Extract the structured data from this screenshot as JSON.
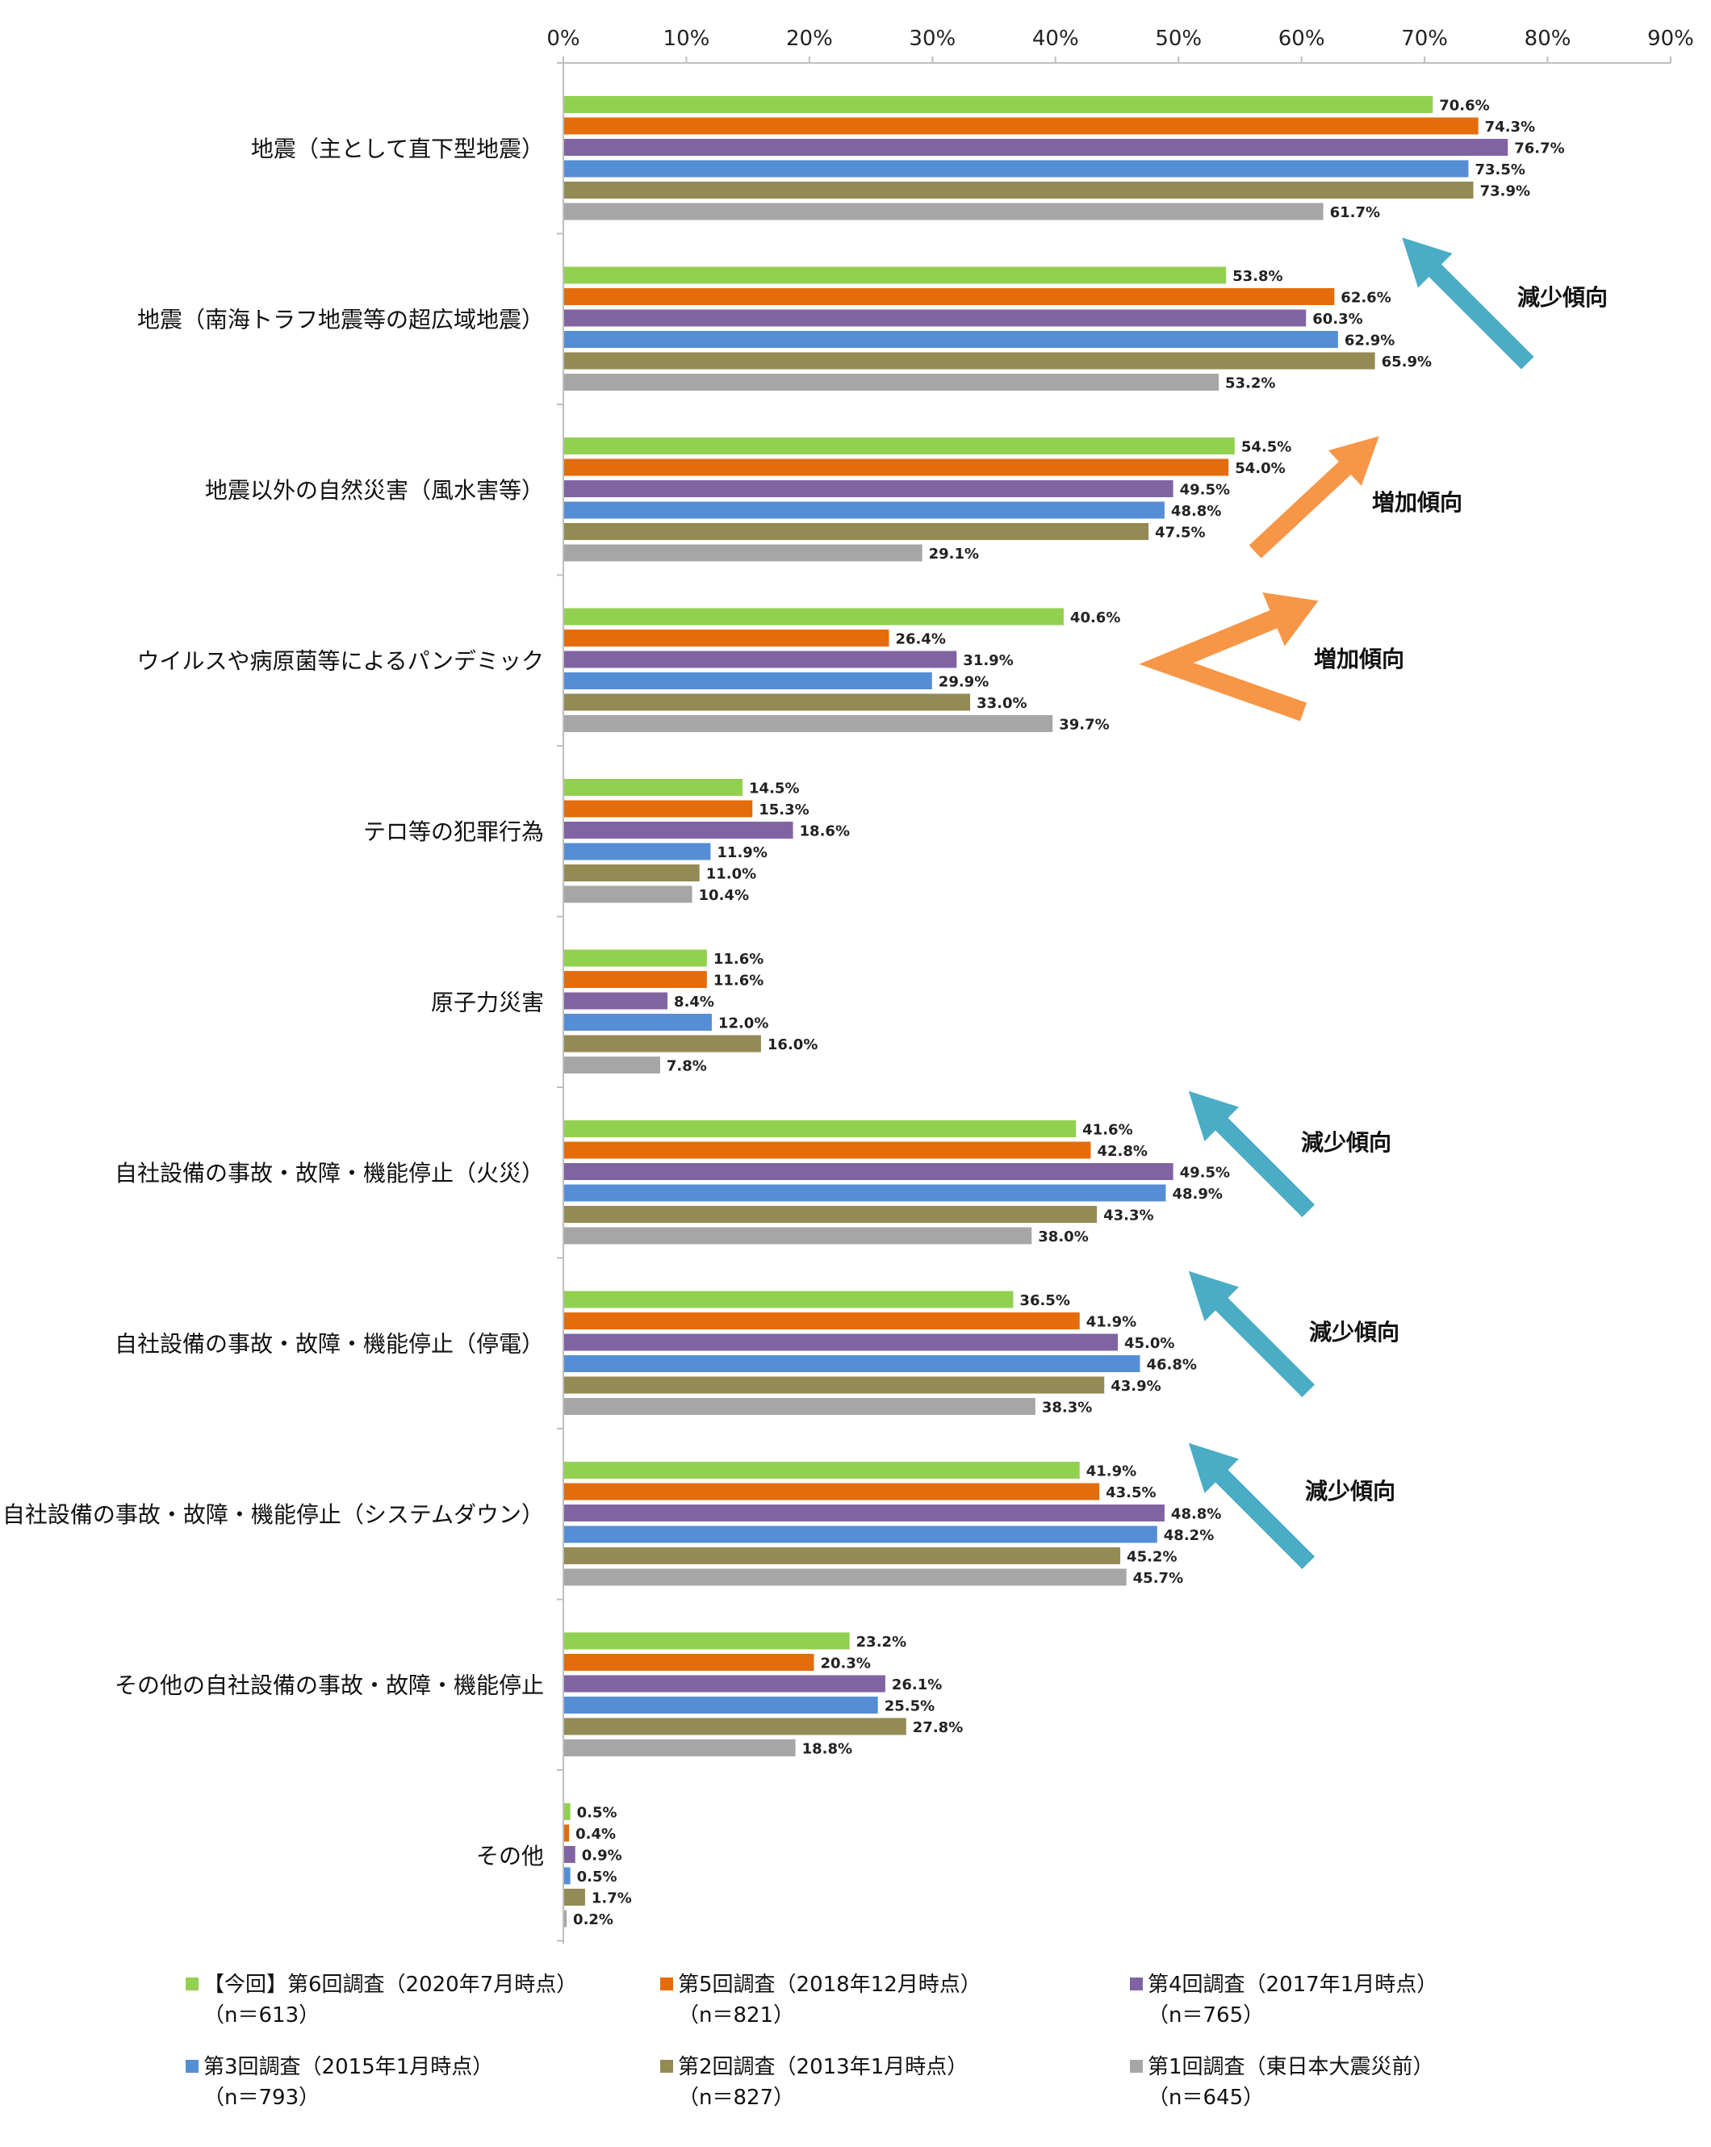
{
  "chart_data": {
    "type": "bar",
    "orientation": "horizontal",
    "xlim": [
      0,
      90
    ],
    "x_ticks": [
      "0%",
      "10%",
      "20%",
      "30%",
      "40%",
      "50%",
      "60%",
      "70%",
      "80%",
      "90%"
    ],
    "grid": false,
    "legend_position": "bottom",
    "value_suffix": "%",
    "categories": [
      "地震（主として直下型地震）",
      "地震（南海トラフ地震等の超広域地震）",
      "地震以外の自然災害（風水害等）",
      "ウイルスや病原菌等によるパンデミック",
      "テロ等の犯罪行為",
      "原子力災害",
      "自社設備の事故・故障・機能停止（火災）",
      "自社設備の事故・故障・機能停止（停電）",
      "自社設備の事故・故障・機能停止（システムダウン）",
      "その他の自社設備の事故・故障・機能停止",
      "その他"
    ],
    "series": [
      {
        "name": "【今回】第6回調査（2020年7月時点）",
        "n": "（n＝613）",
        "color": "#92D050",
        "values": [
          70.6,
          53.8,
          54.5,
          40.6,
          14.5,
          11.6,
          41.6,
          36.5,
          41.9,
          23.2,
          0.5
        ]
      },
      {
        "name": "第5回調査（2018年12月時点）",
        "n": "（n＝821）",
        "color": "#E46C0A",
        "values": [
          74.3,
          62.6,
          54.0,
          26.4,
          15.3,
          11.6,
          42.8,
          41.9,
          43.5,
          20.3,
          0.4
        ]
      },
      {
        "name": "第4回調査（2017年1月時点）",
        "n": "（n＝765）",
        "color": "#8064A2",
        "values": [
          76.7,
          60.3,
          49.5,
          31.9,
          18.6,
          8.4,
          49.5,
          45.0,
          48.8,
          26.1,
          0.9
        ]
      },
      {
        "name": "第3回調査（2015年1月時点）",
        "n": "（n＝793）",
        "color": "#558ED5",
        "values": [
          73.5,
          62.9,
          48.8,
          29.9,
          11.9,
          12.0,
          48.9,
          46.8,
          48.2,
          25.5,
          0.5
        ]
      },
      {
        "name": "第2回調査（2013年1月時点）",
        "n": "（n＝827）",
        "color": "#948A54",
        "values": [
          73.9,
          65.9,
          47.5,
          33.0,
          11.0,
          16.0,
          43.3,
          43.9,
          45.2,
          27.8,
          1.7
        ]
      },
      {
        "name": "第1回調査（東日本大震災前）",
        "n": "（n＝645）",
        "color": "#A6A6A6",
        "values": [
          61.7,
          53.2,
          29.1,
          39.7,
          10.4,
          7.8,
          38.0,
          38.3,
          45.7,
          18.8,
          0.2
        ]
      }
    ],
    "annotations": [
      {
        "text": "減少傾向",
        "category_index": 1,
        "arrow": "up-left",
        "color": "#4BACC6"
      },
      {
        "text": "増加傾向",
        "category_index": 2,
        "arrow": "up-right",
        "color": "#F79646"
      },
      {
        "text": "増加傾向",
        "category_index": 3,
        "arrow": "chevron",
        "color": "#F79646"
      },
      {
        "text": "減少傾向",
        "category_index": 6,
        "arrow": "up-left",
        "color": "#4BACC6"
      },
      {
        "text": "減少傾向",
        "category_index": 7,
        "arrow": "up-left",
        "color": "#4BACC6"
      },
      {
        "text": "減少傾向",
        "category_index": 8,
        "arrow": "up-left",
        "color": "#4BACC6"
      }
    ]
  }
}
